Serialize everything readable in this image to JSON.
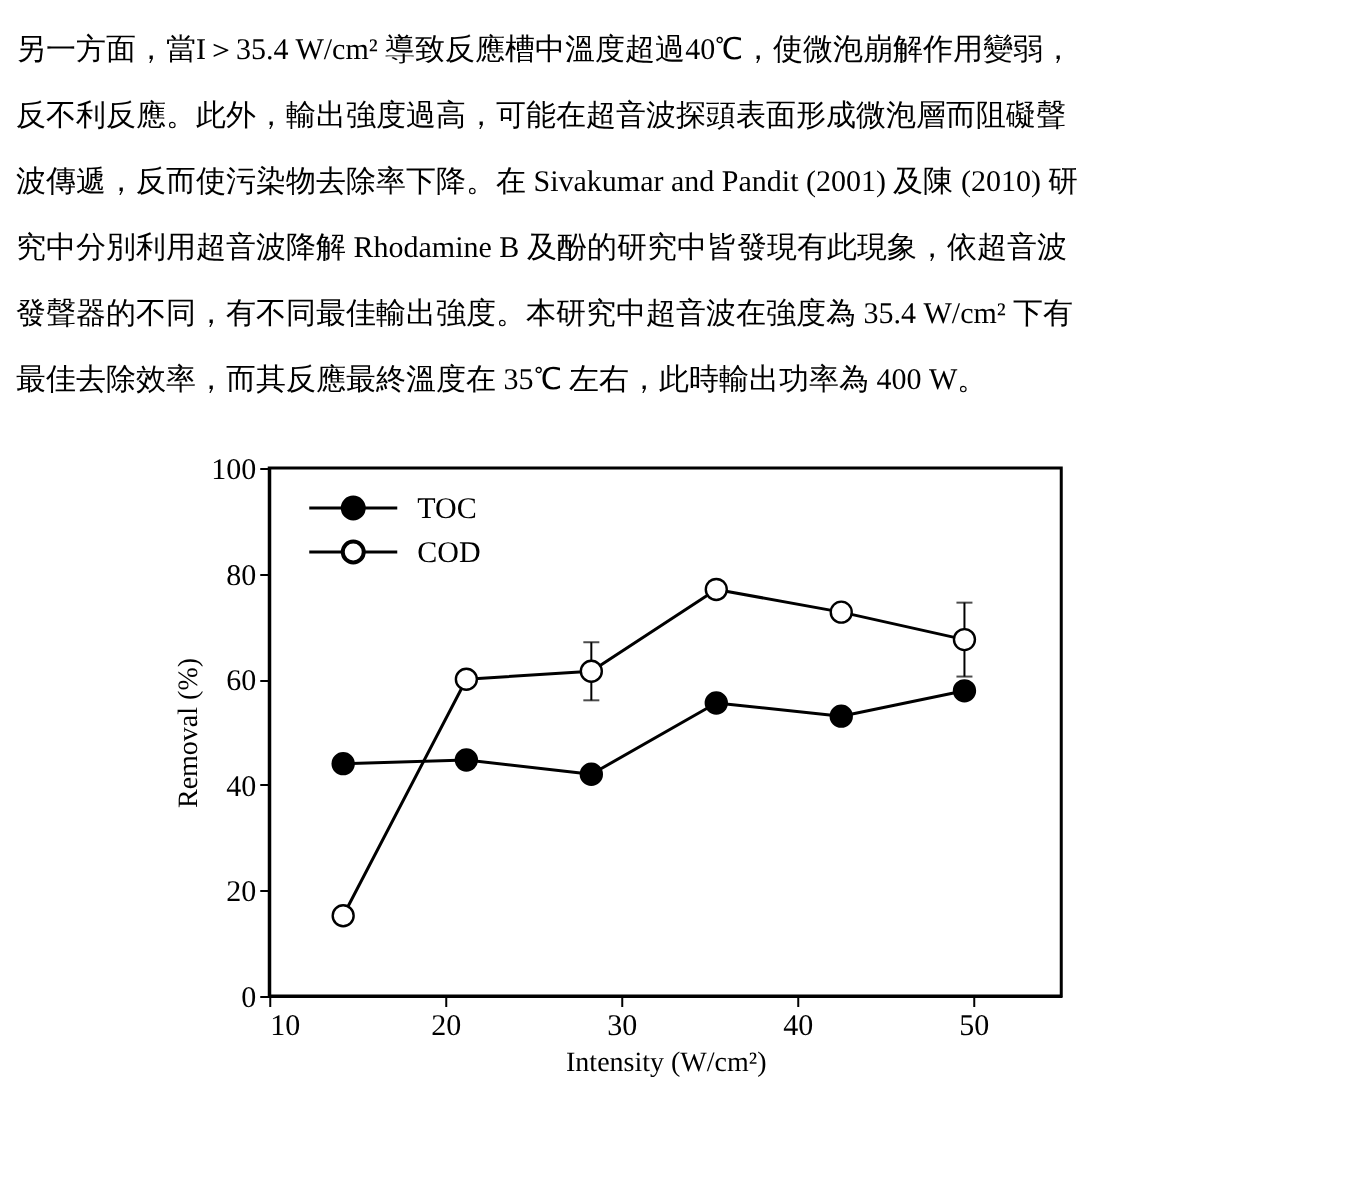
{
  "chart_data": {
    "type": "line",
    "annotations": [
      "另一方面，當I＞35.4 W/cm² 導致反應槽中溫度超過40℃，使微泡崩解作用變弱，",
      "反不利反應。此外，輸出強度過高，可能在超音波探頭表面形成微泡層而阻礙聲",
      "波傳遞，反而使污染物去除率下降。在 Sivakumar and Pandit (2001) 及陳 (2010) 研",
      "究中分別利用超音波降解 Rhodamine B 及酚的研究中皆發現有此現象，依超音波",
      "發聲器的不同，有不同最佳輸出強度。本研究中超音波在強度為 35.4 W/cm² 下有",
      "最佳去除效率，而其反應最終溫度在 35℃ 左右，此時輸出功率為 400 W。"
    ],
    "xlabel": "Intensity (W/cm²)",
    "ylabel": "Removal (%)",
    "x": [
      14.2,
      21.2,
      28.3,
      35.4,
      42.5,
      49.5
    ],
    "series": [
      {
        "name": "TOC",
        "color": "#000000",
        "values": [
          44,
          44.7,
          42,
          55.5,
          53,
          57.8
        ]
      },
      {
        "name": "COD",
        "color": "#000000",
        "values": [
          15.2,
          60,
          61.5,
          77,
          72.7,
          67.5
        ],
        "errors": [
          null,
          null,
          5.5,
          1.5,
          null,
          7
        ]
      }
    ],
    "xlim": [
      10,
      55
    ],
    "xticks": [
      10,
      20,
      30,
      40,
      50
    ],
    "ylim": [
      0,
      100
    ],
    "yticks": [
      0,
      20,
      40,
      60,
      80,
      100
    ],
    "grid": false,
    "legend": "top left",
    "marker": "circle",
    "line_style": "solid"
  }
}
